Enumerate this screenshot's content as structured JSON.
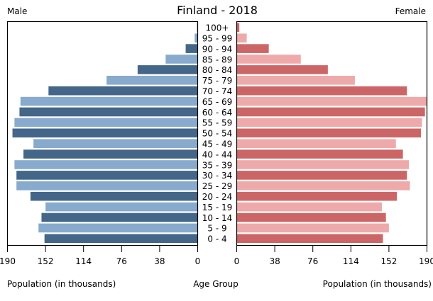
{
  "chart_data": {
    "type": "bar",
    "subtype": "population-pyramid",
    "title": "Finland - 2018",
    "left_label": "Male",
    "right_label": "Female",
    "xlabel_left": "Population (in thousands)",
    "xlabel_center": "Age Group",
    "xlabel_right": "Population (in thousands)",
    "xlim": [
      0,
      190
    ],
    "xticks_left": [
      "190",
      "152",
      "114",
      "76",
      "38",
      "0"
    ],
    "xticks_right": [
      "0",
      "38",
      "76",
      "114",
      "152",
      "190"
    ],
    "xtick_values": [
      0,
      38,
      76,
      114,
      152,
      190
    ],
    "grid": false,
    "categories": [
      "100+",
      "95 - 99",
      "90 - 94",
      "85 - 89",
      "80 - 84",
      "75 - 79",
      "70 - 74",
      "65 - 69",
      "60 - 64",
      "55 - 59",
      "50 - 54",
      "45 - 49",
      "40 - 44",
      "35 - 39",
      "30 - 34",
      "25 - 29",
      "20 - 24",
      "15 - 19",
      "10 - 14",
      "5 - 9",
      "0 - 4"
    ],
    "series": [
      {
        "name": "Male",
        "colors": [
          "#446688",
          "#88aacc"
        ],
        "values": [
          0.6,
          3,
          12,
          32,
          60,
          91,
          149,
          177,
          178,
          183,
          185,
          164,
          174,
          183,
          181,
          181,
          167,
          152,
          156,
          159,
          153
        ]
      },
      {
        "name": "Female",
        "colors": [
          "#cc6666",
          "#eeaaaa"
        ],
        "values": [
          2.6,
          10,
          32,
          64,
          91,
          118,
          170,
          190,
          188,
          185,
          184,
          159,
          166,
          172,
          170,
          173,
          160,
          145,
          149,
          152,
          146
        ]
      }
    ]
  }
}
